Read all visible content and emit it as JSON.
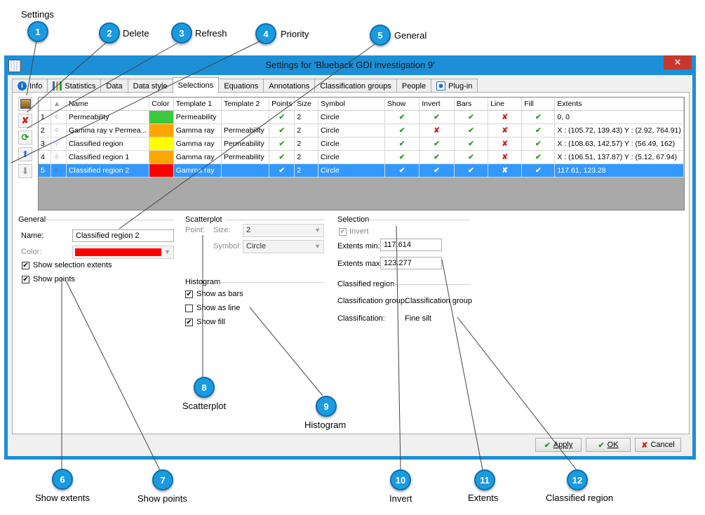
{
  "window": {
    "title": "Settings for 'Blueback GDI investigation 9'",
    "close_glyph": "✕"
  },
  "tabs": [
    {
      "label": "Info",
      "icon": "info-icon"
    },
    {
      "label": "Statistics",
      "icon": "bar-chart-icon"
    },
    {
      "label": "Data"
    },
    {
      "label": "Data style"
    },
    {
      "label": "Selections",
      "active": true
    },
    {
      "label": "Equations"
    },
    {
      "label": "Annotations"
    },
    {
      "label": "Classification groups"
    },
    {
      "label": "People"
    },
    {
      "label": "Plug-in",
      "icon": "plugin-icon"
    }
  ],
  "grid": {
    "columns": [
      "",
      "Name",
      "Color",
      "Template 1",
      "Template 2",
      "Points",
      "Size",
      "Symbol",
      "Show",
      "Invert",
      "Bars",
      "Line",
      "Fill",
      "Extents"
    ],
    "rows": [
      {
        "num": "1",
        "name": "Permeability",
        "color": "#3cc83c",
        "t1": "Permeability",
        "t2": "",
        "points": "✔",
        "size": "2",
        "symbol": "Circle",
        "show": "✔",
        "invert": "✔",
        "bars": "✔",
        "line": "✘",
        "fill": "✔",
        "extents": "0, 0"
      },
      {
        "num": "2",
        "name": "Gamma ray v Permea...",
        "color": "#ffa500",
        "t1": "Gamma ray",
        "t2": "Permeability",
        "points": "✔",
        "size": "2",
        "symbol": "Circle",
        "show": "✔",
        "invert": "✘",
        "bars": "✔",
        "line": "✘",
        "fill": "✔",
        "extents": "X : (105.72, 139.43)  Y : (2.92, 764.91)"
      },
      {
        "num": "3",
        "name": "Classified region",
        "color": "#ffff00",
        "t1": "Gamma ray",
        "t2": "Permeability",
        "points": "✔",
        "size": "2",
        "symbol": "Circle",
        "show": "✔",
        "invert": "✔",
        "bars": "✔",
        "line": "✘",
        "fill": "✔",
        "extents": "X : (108.63, 142.57)  Y : (56.49, 162)"
      },
      {
        "num": "4",
        "name": "Classified region 1",
        "color": "#ffa500",
        "t1": "Gamma ray",
        "t2": "Permeability",
        "points": "✔",
        "size": "2",
        "symbol": "Circle",
        "show": "✔",
        "invert": "✔",
        "bars": "✔",
        "line": "✘",
        "fill": "✔",
        "extents": "X : (106.51, 137.87)  Y : (5.12, 67.94)"
      },
      {
        "num": "5",
        "name": "Classified region 2",
        "color": "#ff0000",
        "t1": "Gamma ray",
        "t2": "",
        "points": "✔",
        "size": "2",
        "symbol": "Circle",
        "show": "✔",
        "invert": "✔",
        "bars": "✔",
        "line": "✘",
        "fill": "✔",
        "extents": "117.61, 123.28",
        "selected": true
      }
    ]
  },
  "general": {
    "title": "General",
    "name_label": "Name:",
    "name_value": "Classified region 2",
    "color_label": "Color:",
    "color_value": "#ff0000",
    "show_extents_label": "Show selection extents",
    "show_points_label": "Show points"
  },
  "scatterplot": {
    "title": "Scatterplot",
    "point_label": "Point:",
    "size_label": "Size:",
    "size_value": "2",
    "symbol_label": "Symbol:",
    "symbol_value": "Circle"
  },
  "histogram": {
    "title": "Histogram",
    "bars_label": "Show as bars",
    "line_label": "Show as line",
    "fill_label": "Show fill"
  },
  "selection": {
    "title": "Selection",
    "invert_label": "Invert",
    "min_label": "Extents min:",
    "min_value": "117.614",
    "max_label": "Extents max:",
    "max_value": "123.277"
  },
  "classified": {
    "title": "Classified region",
    "group_label": "Classification group:",
    "group_value": "Classification group",
    "class_label": "Classification:",
    "class_value": "Fine silt"
  },
  "buttons": {
    "apply": "Apply",
    "ok": "OK",
    "cancel": "Cancel"
  },
  "callouts": [
    {
      "n": "1",
      "label": "Settings"
    },
    {
      "n": "2",
      "label": "Delete"
    },
    {
      "n": "3",
      "label": "Refresh"
    },
    {
      "n": "4",
      "label": "Priority"
    },
    {
      "n": "5",
      "label": "General"
    },
    {
      "n": "6",
      "label": "Show extents"
    },
    {
      "n": "7",
      "label": "Show points"
    },
    {
      "n": "8",
      "label": "Scatterplot"
    },
    {
      "n": "9",
      "label": "Histogram"
    },
    {
      "n": "10",
      "label": "Invert"
    },
    {
      "n": "11",
      "label": "Extents"
    },
    {
      "n": "12",
      "label": "Classified region"
    }
  ]
}
